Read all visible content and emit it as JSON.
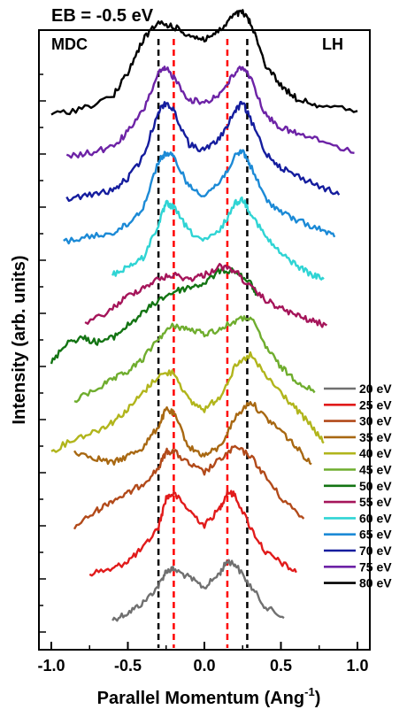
{
  "chart_data": {
    "type": "line",
    "title": "EB = -0.5 eV",
    "annotations": [
      "MDC",
      "LH"
    ],
    "xlabel": "Parallel Momentum (Ang",
    "xlabel_sup": "-1",
    "xlabel_close": ")",
    "ylabel": "Intensity (arb. units)",
    "xlim": [
      -1.0,
      1.0
    ],
    "xticks": [
      -1.0,
      -0.5,
      0.0,
      0.5,
      1.0
    ],
    "xtick_labels": [
      "-1.0",
      "-0.5",
      "0.0",
      "0.5",
      "1.0"
    ],
    "y_ticks_labeled": false,
    "legend_position": "bottom-right",
    "reference_lines": [
      {
        "x": -0.3,
        "color": "#000000",
        "style": "dashed"
      },
      {
        "x": 0.28,
        "color": "#000000",
        "style": "dashed"
      },
      {
        "x": -0.2,
        "color": "#ff0000",
        "style": "dashed"
      },
      {
        "x": 0.15,
        "color": "#ff0000",
        "style": "dashed"
      }
    ],
    "series": [
      {
        "name": "20 eV",
        "color": "#707070",
        "x": [
          -0.6,
          -0.5,
          -0.4,
          -0.3,
          -0.25,
          -0.2,
          -0.1,
          0.0,
          0.1,
          0.15,
          0.2,
          0.3,
          0.4,
          0.52
        ],
        "y": [
          0.0,
          0.08,
          0.2,
          0.4,
          0.58,
          0.6,
          0.5,
          0.38,
          0.55,
          0.7,
          0.66,
          0.4,
          0.15,
          0.02
        ]
      },
      {
        "name": "25 eV",
        "color": "#e11b1b",
        "x": [
          -0.75,
          -0.6,
          -0.5,
          -0.4,
          -0.3,
          -0.25,
          -0.2,
          -0.1,
          0.0,
          0.1,
          0.15,
          0.2,
          0.3,
          0.4,
          0.5,
          0.6
        ],
        "y": [
          0.05,
          0.1,
          0.2,
          0.35,
          0.6,
          0.95,
          1.0,
          0.8,
          0.62,
          0.82,
          1.02,
          0.98,
          0.6,
          0.3,
          0.18,
          0.06
        ]
      },
      {
        "name": "30 eV",
        "color": "#b24a1a",
        "x": [
          -0.85,
          -0.7,
          -0.6,
          -0.5,
          -0.4,
          -0.3,
          -0.25,
          -0.2,
          -0.1,
          0.0,
          0.1,
          0.2,
          0.3,
          0.4,
          0.5,
          0.65
        ],
        "y": [
          0.1,
          0.3,
          0.42,
          0.5,
          0.62,
          0.8,
          1.0,
          1.0,
          0.85,
          0.75,
          0.9,
          1.05,
          0.95,
          0.7,
          0.45,
          0.2
        ]
      },
      {
        "name": "35 eV",
        "color": "#a86812",
        "x": [
          -0.85,
          -0.7,
          -0.6,
          -0.5,
          -0.4,
          -0.3,
          -0.25,
          -0.2,
          -0.1,
          0.0,
          0.1,
          0.2,
          0.3,
          0.4,
          0.5,
          0.6,
          0.7
        ],
        "y": [
          0.5,
          0.42,
          0.36,
          0.45,
          0.55,
          0.8,
          1.0,
          0.95,
          0.55,
          0.45,
          0.55,
          0.9,
          1.1,
          0.9,
          0.75,
          0.55,
          0.35
        ]
      },
      {
        "name": "40 eV",
        "color": "#b1b51c",
        "x": [
          -1.0,
          -0.85,
          -0.7,
          -0.6,
          -0.5,
          -0.4,
          -0.3,
          -0.2,
          -0.1,
          0.0,
          0.1,
          0.2,
          0.3,
          0.4,
          0.5,
          0.6,
          0.7,
          0.78
        ],
        "y": [
          0.0,
          0.15,
          0.25,
          0.35,
          0.5,
          0.7,
          0.9,
          0.95,
          0.6,
          0.5,
          0.65,
          1.0,
          1.15,
          0.9,
          0.7,
          0.5,
          0.3,
          0.1
        ]
      },
      {
        "name": "45 eV",
        "color": "#6fad2e",
        "x": [
          -0.85,
          -0.7,
          -0.6,
          -0.5,
          -0.4,
          -0.3,
          -0.2,
          -0.1,
          0.0,
          0.1,
          0.2,
          0.3,
          0.4,
          0.5,
          0.6,
          0.72
        ],
        "y": [
          0.1,
          0.25,
          0.35,
          0.45,
          0.6,
          0.85,
          1.0,
          0.95,
          0.9,
          0.95,
          1.05,
          1.1,
          0.75,
          0.5,
          0.35,
          0.2
        ]
      },
      {
        "name": "50 eV",
        "color": "#137413",
        "x": [
          -1.0,
          -0.9,
          -0.8,
          -0.7,
          -0.6,
          -0.5,
          -0.4,
          -0.3,
          -0.2,
          -0.1,
          0.0,
          0.1,
          0.2,
          0.3,
          0.35
        ],
        "y": [
          0.05,
          0.3,
          0.35,
          0.3,
          0.35,
          0.5,
          0.65,
          0.8,
          0.9,
          0.95,
          1.0,
          1.15,
          1.15,
          1.0,
          0.85
        ]
      },
      {
        "name": "55 eV",
        "color": "#a5155a",
        "x": [
          -0.78,
          -0.6,
          -0.5,
          -0.4,
          -0.3,
          -0.2,
          -0.1,
          0.0,
          0.1,
          0.2,
          0.3,
          0.4,
          0.5,
          0.6,
          0.7,
          0.8
        ],
        "y": [
          0.0,
          0.2,
          0.35,
          0.45,
          0.55,
          0.6,
          0.55,
          0.6,
          0.7,
          0.65,
          0.45,
          0.3,
          0.2,
          0.12,
          0.05,
          0.0
        ]
      },
      {
        "name": "60 eV",
        "color": "#2fd4d4",
        "x": [
          -0.6,
          -0.5,
          -0.4,
          -0.3,
          -0.25,
          -0.2,
          -0.1,
          0.0,
          0.1,
          0.2,
          0.25,
          0.3,
          0.4,
          0.5,
          0.6,
          0.7,
          0.78
        ],
        "y": [
          0.1,
          0.2,
          0.3,
          0.7,
          0.95,
          0.9,
          0.62,
          0.5,
          0.62,
          0.95,
          1.0,
          0.85,
          0.55,
          0.35,
          0.22,
          0.1,
          0.05
        ]
      },
      {
        "name": "65 eV",
        "color": "#1c8ad6",
        "x": [
          -0.92,
          -0.75,
          -0.6,
          -0.5,
          -0.4,
          -0.3,
          -0.25,
          -0.2,
          -0.1,
          0.0,
          0.1,
          0.2,
          0.25,
          0.3,
          0.4,
          0.5,
          0.6,
          0.75,
          0.85
        ],
        "y": [
          0.0,
          0.05,
          0.1,
          0.2,
          0.4,
          0.95,
          1.05,
          1.0,
          0.65,
          0.55,
          0.7,
          1.0,
          1.08,
          0.9,
          0.5,
          0.35,
          0.25,
          0.15,
          0.05
        ]
      },
      {
        "name": "70 eV",
        "color": "#151d9e",
        "x": [
          -0.9,
          -0.75,
          -0.6,
          -0.5,
          -0.4,
          -0.3,
          -0.25,
          -0.2,
          -0.1,
          0.0,
          0.1,
          0.2,
          0.25,
          0.3,
          0.4,
          0.5,
          0.6,
          0.75,
          0.88
        ],
        "y": [
          0.0,
          0.05,
          0.1,
          0.25,
          0.5,
          1.05,
          1.15,
          1.05,
          0.65,
          0.58,
          0.72,
          1.05,
          1.15,
          0.95,
          0.55,
          0.38,
          0.28,
          0.16,
          0.05
        ]
      },
      {
        "name": "75 eV",
        "color": "#6d23a6",
        "x": [
          -0.9,
          -0.75,
          -0.6,
          -0.5,
          -0.4,
          -0.3,
          -0.25,
          -0.2,
          -0.1,
          0.0,
          0.1,
          0.2,
          0.25,
          0.3,
          0.4,
          0.5,
          0.6,
          0.75,
          0.98
        ],
        "y": [
          0.0,
          0.05,
          0.12,
          0.3,
          0.55,
          1.0,
          1.05,
          0.95,
          0.68,
          0.65,
          0.75,
          1.0,
          1.08,
          0.95,
          0.5,
          0.35,
          0.28,
          0.2,
          0.05
        ]
      },
      {
        "name": "80 eV",
        "color": "#000000",
        "x": [
          -1.0,
          -0.8,
          -0.6,
          -0.5,
          -0.4,
          -0.3,
          -0.2,
          -0.1,
          0.0,
          0.1,
          0.2,
          0.25,
          0.3,
          0.4,
          0.5,
          0.6,
          0.75,
          1.0
        ],
        "y": [
          0.0,
          0.08,
          0.22,
          0.5,
          0.9,
          1.1,
          1.05,
          0.95,
          0.9,
          1.0,
          1.2,
          1.22,
          1.1,
          0.6,
          0.35,
          0.2,
          0.12,
          0.05
        ]
      }
    ]
  }
}
